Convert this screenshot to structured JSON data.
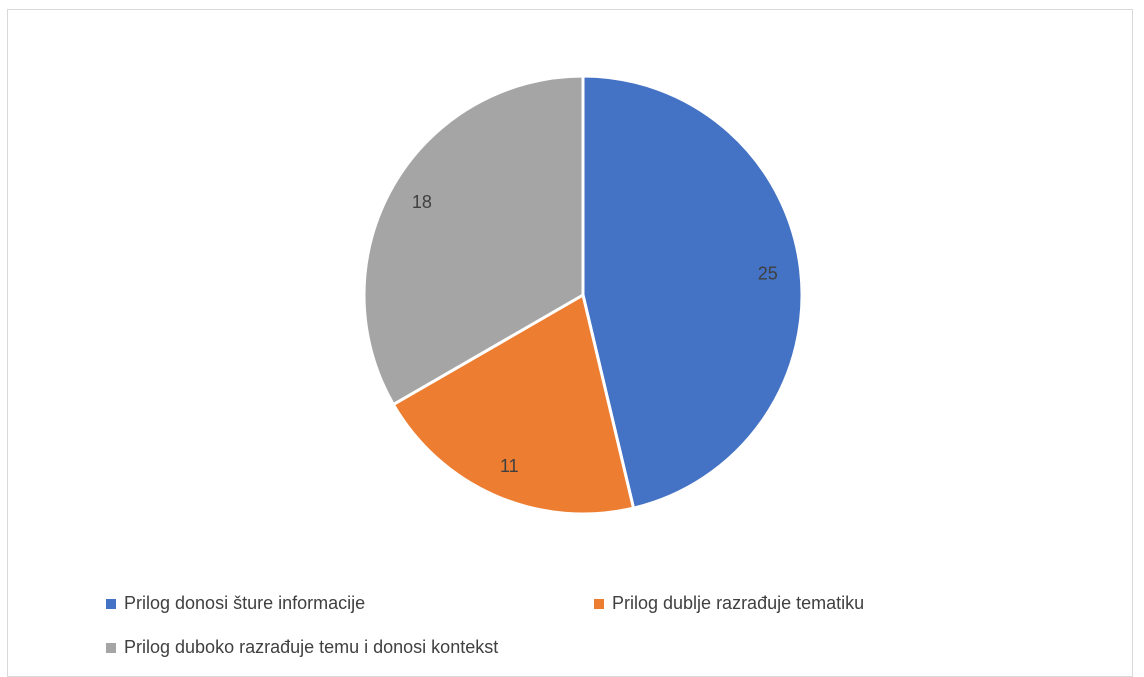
{
  "chart_data": {
    "type": "pie",
    "title": "",
    "categories": [
      "Prilog donosi šture informacije",
      "Prilog dublje razrađuje tematiku",
      "Prilog duboko razrađuje temu i donosi kontekst"
    ],
    "values": [
      25,
      11,
      18
    ],
    "colors": [
      "#4472c4",
      "#ed7d31",
      "#a5a5a5"
    ],
    "data_labels": [
      "25",
      "11",
      "18"
    ],
    "legend_position": "bottom",
    "start_angle": "12 o'clock",
    "direction": "clockwise"
  }
}
